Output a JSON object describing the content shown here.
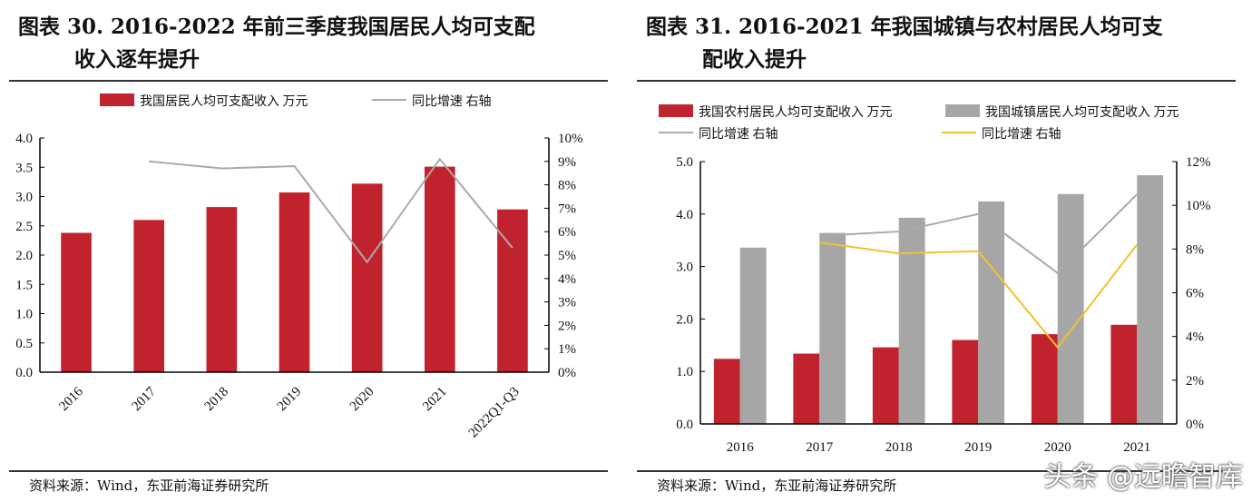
{
  "source_left": "资料来源：Wind，东亚前海证券研究所",
  "source_right": "资料来源：Wind，东亚前海证券研究所",
  "watermark": "头条 @远瞻智库",
  "chart_data": [
    {
      "type": "bar+line",
      "title_line1": "图表 30. 2016-2022 年前三季度我国居民人均可支配",
      "title_line2": "收入逐年提升",
      "categories": [
        "2016",
        "2017",
        "2018",
        "2019",
        "2020",
        "2021",
        "2022Q1-Q3"
      ],
      "series": [
        {
          "name": "我国居民人均可支配收入 万元",
          "type": "bar",
          "axis": "left",
          "color": "#C0232E",
          "values": [
            2.38,
            2.6,
            2.82,
            3.07,
            3.22,
            3.51,
            2.78
          ]
        },
        {
          "name": "同比增速 右轴",
          "type": "line",
          "axis": "right",
          "color": "#AAAAAA",
          "values": [
            null,
            9.0,
            8.7,
            8.8,
            4.7,
            9.1,
            5.3
          ]
        }
      ],
      "yleft": {
        "range": [
          0,
          4.0
        ],
        "ticks": [
          "0.0",
          "0.5",
          "1.0",
          "1.5",
          "2.0",
          "2.5",
          "3.0",
          "3.5",
          "4.0"
        ]
      },
      "yright": {
        "range": [
          0,
          10
        ],
        "ticks": [
          "0%",
          "1%",
          "2%",
          "3%",
          "4%",
          "5%",
          "6%",
          "7%",
          "8%",
          "9%",
          "10%"
        ]
      },
      "legend": "top",
      "grid": false
    },
    {
      "type": "bar+line",
      "title_line1": "图表 31. 2016-2021 年我国城镇与农村居民人均可支",
      "title_line2": "配收入提升",
      "categories": [
        "2016",
        "2017",
        "2018",
        "2019",
        "2020",
        "2021"
      ],
      "series": [
        {
          "name": "我国农村居民人均可支配收入 万元",
          "type": "bar",
          "axis": "left",
          "color": "#C0232E",
          "values": [
            1.24,
            1.34,
            1.46,
            1.6,
            1.71,
            1.89
          ]
        },
        {
          "name": "我国城镇居民人均可支配收入 万元",
          "type": "bar",
          "axis": "left",
          "color": "#A6A6A6",
          "values": [
            3.36,
            3.64,
            3.93,
            4.24,
            4.38,
            4.74
          ]
        },
        {
          "name": "同比增速 右轴",
          "type": "line",
          "axis": "right",
          "color": "#AAAAAA",
          "values": [
            null,
            8.6,
            8.8,
            9.6,
            6.9,
            10.5
          ]
        },
        {
          "name": "同比增速 右轴",
          "type": "line",
          "axis": "right",
          "color": "#F2C12E",
          "values": [
            null,
            8.3,
            7.8,
            7.9,
            3.5,
            8.2
          ]
        }
      ],
      "yleft": {
        "range": [
          0,
          5.0
        ],
        "ticks": [
          "0.0",
          "1.0",
          "2.0",
          "3.0",
          "4.0",
          "5.0"
        ]
      },
      "yright": {
        "range": [
          0,
          12
        ],
        "ticks": [
          "0%",
          "2%",
          "4%",
          "6%",
          "8%",
          "10%",
          "12%"
        ]
      },
      "legend": "top",
      "grid": false
    }
  ]
}
